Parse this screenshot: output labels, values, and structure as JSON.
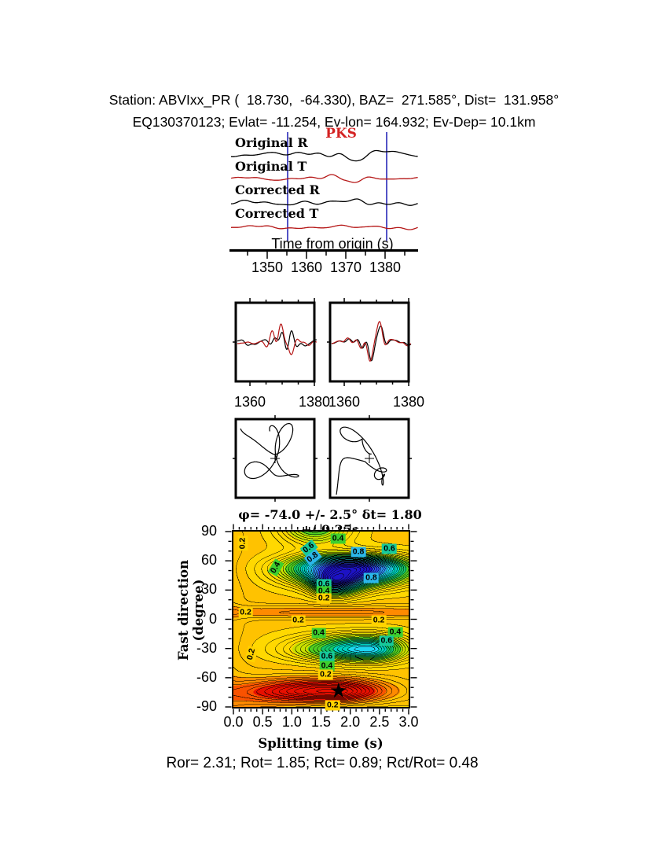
{
  "header": {
    "line1": "Station: ABVIxx_PR (  18.730,  -64.330), BAZ=  271.585°, Dist=  131.958°",
    "line2": "EQ130370123; Evlat= -11.254, Ev-lon= 164.932; Ev-Dep= 10.1km"
  },
  "footer": {
    "stats": "Ror= 2.31; Rot= 1.85; Rct= 0.89; Rct/Rot= 0.48"
  },
  "chart_data": [
    {
      "id": "seismograms",
      "type": "line",
      "phase_label": "PKS",
      "phase_color": "#d42222",
      "xlabel": "Time from origin (s)",
      "xticks": [
        1350,
        1360,
        1370,
        1380
      ],
      "xlim": [
        1340.8,
        1388.2
      ],
      "window_markers": [
        1355.2,
        1380.4
      ],
      "marker_color": "#2828b8",
      "traces": [
        {
          "name": "Original R",
          "color": "#000000",
          "seed": 11,
          "base": 5.5,
          "burst": 15,
          "burst_t": 1371.5,
          "burst_w": 7.5
        },
        {
          "name": "Original T",
          "color": "#b51616",
          "seed": 22,
          "base": 4.5,
          "burst": 8,
          "burst_t": 1370.0,
          "burst_w": 6.0
        },
        {
          "name": "Corrected R",
          "color": "#000000",
          "seed": 13,
          "base": 5.5,
          "burst": 16,
          "burst_t": 1372.0,
          "burst_w": 7.5
        },
        {
          "name": "Corrected T",
          "color": "#b51616",
          "seed": 37,
          "base": 4.0,
          "burst": 1.5,
          "burst_t": 1371.0,
          "burst_w": 6.0
        }
      ]
    },
    {
      "id": "waveform-comparison",
      "type": "line",
      "xticks": [
        "1360",
        "1380"
      ],
      "xlim": [
        1355.6,
        1380.0
      ],
      "colors": {
        "black": "#000000",
        "red": "#b51616"
      },
      "boxes": [
        {
          "black_seed": 51,
          "red_seed": 52,
          "mode": "independent",
          "black_amp": 22,
          "red_amp": 30
        },
        {
          "black_seed": 61,
          "red_seed": 61,
          "mode": "matched",
          "black_amp": 22,
          "red_amp": 24
        }
      ]
    },
    {
      "id": "particle-motion",
      "type": "scatter",
      "boxes": [
        {
          "seed": 71,
          "entry": [
            -44,
            -38
          ]
        },
        {
          "seed": 83,
          "entry": [
            -42,
            46
          ]
        }
      ]
    },
    {
      "id": "splitting-error-surface",
      "type": "contour",
      "title": "φ= -74.0 +/- 2.5° δt= 1.80 +/-0.25s",
      "xlabel": "Splitting time (s)",
      "ylabel": "Fast direction (degree)",
      "xticks": [
        "0.0",
        "0.5",
        "1.0",
        "1.5",
        "2.0",
        "2.5",
        "3.0"
      ],
      "yticks": [
        90,
        60,
        30,
        0,
        -30,
        -60,
        -90
      ],
      "xlim": [
        0,
        3
      ],
      "ylim": [
        -90,
        90
      ],
      "contour_interval": 0.025,
      "labeled_levels": [
        0.2,
        0.4,
        0.6,
        0.8
      ],
      "level_colors": {
        "0.2": "#ffd200",
        "0.4": "#3ecf2e",
        "0.6": "#17c99b",
        "0.8": "#2bb7ea"
      },
      "best_fit": {
        "dt": 1.8,
        "dt_err": 0.25,
        "phi": -74.0,
        "phi_err": 2.5,
        "symbol": "★"
      },
      "contour_labels": [
        {
          "v": "0.2",
          "x": 0.16,
          "y": 78,
          "r": -90
        },
        {
          "v": "0.4",
          "x": 0.72,
          "y": 53,
          "r": -60
        },
        {
          "v": "0.6",
          "x": 1.29,
          "y": 73,
          "r": -38
        },
        {
          "v": "0.8",
          "x": 1.36,
          "y": 63,
          "r": -38
        },
        {
          "v": "0.4",
          "x": 1.79,
          "y": 83,
          "r": 0
        },
        {
          "v": "0.8",
          "x": 2.14,
          "y": 69,
          "r": 0
        },
        {
          "v": "0.6",
          "x": 2.67,
          "y": 72,
          "r": 0
        },
        {
          "v": "0.8",
          "x": 2.36,
          "y": 42,
          "r": 0
        },
        {
          "v": "0.6",
          "x": 1.55,
          "y": 36,
          "r": 0
        },
        {
          "v": "0.4",
          "x": 1.55,
          "y": 29,
          "r": 0
        },
        {
          "v": "0.2",
          "x": 1.55,
          "y": 21,
          "r": 0
        },
        {
          "v": "0.2",
          "x": 0.21,
          "y": 7,
          "r": 0
        },
        {
          "v": "0.2",
          "x": 1.11,
          "y": -1,
          "r": 0
        },
        {
          "v": "0.2",
          "x": 2.49,
          "y": -1,
          "r": 0
        },
        {
          "v": "0.4",
          "x": 1.46,
          "y": -14,
          "r": 0
        },
        {
          "v": "0.4",
          "x": 2.77,
          "y": -13,
          "r": 0
        },
        {
          "v": "0.6",
          "x": 2.62,
          "y": -22,
          "r": 0
        },
        {
          "v": "0.2",
          "x": 0.31,
          "y": -36,
          "r": -75
        },
        {
          "v": "0.6",
          "x": 1.6,
          "y": -38,
          "r": 0
        },
        {
          "v": "0.4",
          "x": 1.6,
          "y": -48,
          "r": 0
        },
        {
          "v": "0.2",
          "x": 1.58,
          "y": -57,
          "r": 0
        },
        {
          "v": "0.2",
          "x": 1.7,
          "y": -88,
          "r": 0
        }
      ],
      "field": {
        "base": 0.24,
        "components": [
          {
            "amp": -0.06,
            "x0": -0.4,
            "sxl": 0.5,
            "sxr": 0.5,
            "y0": 0,
            "syl": 500,
            "syu": 500
          },
          {
            "amp": 0.8,
            "x0": 2.0,
            "sxl": 0.95,
            "sxr": 0.95,
            "y0": 52,
            "syl": 16,
            "syu": 13
          },
          {
            "amp": 0.28,
            "x0": 1.4,
            "sxl": 0.55,
            "sxr": 0.55,
            "y0": 97,
            "syl": 19,
            "syu": 19
          },
          {
            "amp": 0.45,
            "x0": 1.72,
            "sxl": 0.34,
            "sxr": 0.42,
            "y0": 38,
            "syl": 13,
            "syu": 9
          },
          {
            "amp": -0.1,
            "x0": 1.7,
            "sxl": 2.8,
            "sxr": 2.8,
            "y0": 7,
            "syl": 6,
            "syu": 7
          },
          {
            "amp": 0.48,
            "x0": 2.3,
            "sxl": 1.1,
            "sxr": 0.62,
            "y0": -31,
            "syl": 12,
            "syu": 14
          },
          {
            "amp": -0.36,
            "x0": 1.72,
            "sxl": 1.3,
            "sxr": 0.85,
            "y0": -74,
            "syl": 11,
            "syu": 12
          },
          {
            "amp": 0.1,
            "x0": 1.7,
            "sxl": 1.4,
            "sxr": 1.4,
            "y0": -101,
            "syl": 12,
            "syu": 12
          },
          {
            "amp": -0.07,
            "x0": 0.4,
            "sxl": 1.1,
            "sxr": 1.1,
            "y0": -86,
            "syl": 26,
            "syu": 26
          }
        ]
      },
      "palette": [
        {
          "upto": 0.06,
          "color": "#e60f00"
        },
        {
          "upto": 0.12,
          "color": "#fa5200"
        },
        {
          "upto": 0.18,
          "color": "#ff8a00"
        },
        {
          "upto": 0.25,
          "color": "#ffc200"
        },
        {
          "upto": 0.36,
          "color": "#ffd800"
        },
        {
          "upto": 0.44,
          "color": "#c8e000"
        },
        {
          "upto": 0.52,
          "color": "#50d020"
        },
        {
          "upto": 0.6,
          "color": "#12c86a"
        },
        {
          "upto": 0.68,
          "color": "#00d2c0"
        },
        {
          "upto": 0.76,
          "color": "#1ed6f2"
        },
        {
          "upto": 0.84,
          "color": "#2e8ef2"
        },
        {
          "upto": 0.92,
          "color": "#2e4ae6"
        },
        {
          "upto": 2.0,
          "color": "#1d12c4"
        }
      ]
    }
  ]
}
